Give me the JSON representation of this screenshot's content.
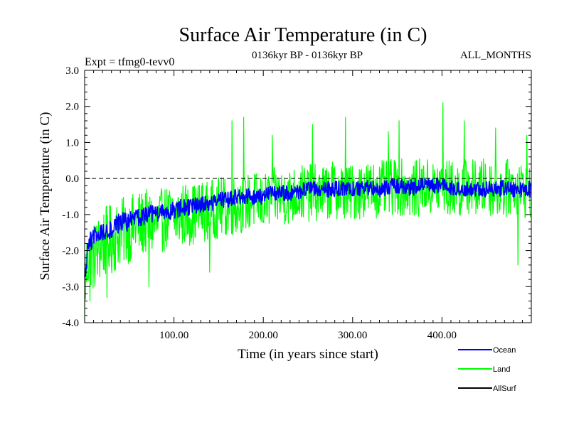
{
  "chart_data": {
    "type": "line",
    "title": "Surface Air Temperature (in C)",
    "header_left": "Expt = tfmg0-tevv0",
    "header_center": "0136kyr BP - 0136kyr BP",
    "header_right": "ALL_MONTHS",
    "xlabel": "Time (in years since start)",
    "ylabel": "Surface Air Temperature (in C)",
    "xlim": [
      0,
      500
    ],
    "ylim": [
      -4.0,
      3.0
    ],
    "xticks": [
      100,
      200,
      300,
      400
    ],
    "xtick_labels": [
      "100.00",
      "200.00",
      "300.00",
      "400.00"
    ],
    "yticks": [
      -4.0,
      -3.0,
      -2.0,
      -1.0,
      0.0,
      1.0,
      2.0,
      3.0
    ],
    "ytick_labels": [
      "-4.0",
      "-3.0",
      "-2.0",
      "-1.0",
      "0.0",
      "1.0",
      "2.0",
      "3.0"
    ],
    "reference_line": {
      "y": 0.0,
      "style": "dashed",
      "color": "#000000"
    },
    "grid": false,
    "legend_position": "bottom-right outside",
    "series": [
      {
        "name": "Land",
        "color": "#00ff00",
        "x": [
          0,
          5,
          10,
          20,
          30,
          40,
          50,
          60,
          70,
          80,
          90,
          100,
          110,
          120,
          130,
          140,
          150,
          160,
          170,
          180,
          190,
          200,
          210,
          220,
          230,
          240,
          250,
          260,
          270,
          280,
          290,
          300,
          310,
          320,
          330,
          340,
          350,
          360,
          370,
          380,
          390,
          400,
          410,
          420,
          430,
          440,
          450,
          460,
          470,
          480,
          490,
          500
        ],
        "values": [
          -2.9,
          -2.0,
          -2.2,
          -1.8,
          -1.7,
          -1.5,
          -1.4,
          -1.3,
          -1.2,
          -1.3,
          -1.1,
          -1.1,
          -1.0,
          -1.0,
          -0.9,
          -0.9,
          -0.8,
          -0.8,
          -0.7,
          -0.7,
          -0.6,
          -0.7,
          -0.5,
          -0.5,
          -0.5,
          -0.4,
          -0.4,
          -0.4,
          -0.4,
          -0.3,
          -0.4,
          -0.4,
          -0.3,
          -0.3,
          -0.3,
          -0.3,
          -0.2,
          -0.3,
          -0.3,
          -0.2,
          -0.3,
          -0.2,
          -0.3,
          -0.3,
          -0.2,
          -0.3,
          -0.2,
          -0.3,
          -0.3,
          -0.2,
          -0.3,
          -0.3
        ],
        "band": [
          1.1,
          1.0,
          1.0,
          1.0,
          1.0,
          0.95,
          0.95,
          0.95,
          0.9,
          0.9,
          0.9,
          0.9,
          0.9,
          0.85,
          0.85,
          0.85,
          0.85,
          0.85,
          0.85,
          0.8,
          0.8,
          0.8,
          0.8,
          0.8,
          0.8,
          0.8,
          0.8,
          0.8,
          0.8,
          0.8,
          0.8,
          0.8,
          0.8,
          0.8,
          0.8,
          0.8,
          0.8,
          0.8,
          0.8,
          0.8,
          0.8,
          0.8,
          0.8,
          0.8,
          0.8,
          0.8,
          0.8,
          0.8,
          0.8,
          0.8,
          0.8,
          0.8
        ],
        "extremes": [
          {
            "x": 0,
            "y": -4.0
          },
          {
            "x": 6,
            "y": -3.4
          },
          {
            "x": 25,
            "y": -3.3
          },
          {
            "x": 72,
            "y": -3.0
          },
          {
            "x": 140,
            "y": -2.6
          },
          {
            "x": 165,
            "y": 1.6
          },
          {
            "x": 178,
            "y": 1.7
          },
          {
            "x": 210,
            "y": 1.2
          },
          {
            "x": 255,
            "y": 1.5
          },
          {
            "x": 292,
            "y": 1.7
          },
          {
            "x": 340,
            "y": 1.3
          },
          {
            "x": 352,
            "y": 1.6
          },
          {
            "x": 401,
            "y": 2.1
          },
          {
            "x": 425,
            "y": 1.6
          },
          {
            "x": 460,
            "y": 1.4
          },
          {
            "x": 485,
            "y": -2.4
          },
          {
            "x": 495,
            "y": 1.2
          }
        ]
      },
      {
        "name": "Ocean",
        "color": "#0000ff",
        "x": [
          0,
          5,
          10,
          20,
          30,
          40,
          50,
          60,
          70,
          80,
          90,
          100,
          110,
          120,
          130,
          140,
          150,
          160,
          170,
          180,
          190,
          200,
          210,
          220,
          230,
          240,
          250,
          260,
          270,
          280,
          290,
          300,
          310,
          320,
          330,
          340,
          350,
          360,
          370,
          380,
          390,
          400,
          410,
          420,
          430,
          440,
          450,
          460,
          470,
          480,
          490,
          500
        ],
        "values": [
          -2.8,
          -1.8,
          -1.6,
          -1.5,
          -1.4,
          -1.2,
          -1.2,
          -1.1,
          -1.0,
          -1.0,
          -0.9,
          -0.9,
          -0.8,
          -0.8,
          -0.7,
          -0.7,
          -0.6,
          -0.6,
          -0.5,
          -0.5,
          -0.5,
          -0.5,
          -0.4,
          -0.4,
          -0.4,
          -0.35,
          -0.3,
          -0.3,
          -0.3,
          -0.3,
          -0.3,
          -0.3,
          -0.3,
          -0.25,
          -0.3,
          -0.25,
          -0.2,
          -0.25,
          -0.25,
          -0.2,
          -0.2,
          -0.2,
          -0.25,
          -0.3,
          -0.25,
          -0.3,
          -0.3,
          -0.3,
          -0.25,
          -0.3,
          -0.3,
          -0.3
        ],
        "band": [
          0.35,
          0.3,
          0.3,
          0.3,
          0.3,
          0.28,
          0.28,
          0.27,
          0.26,
          0.25,
          0.25,
          0.25,
          0.24,
          0.24,
          0.23,
          0.23,
          0.23,
          0.22,
          0.22,
          0.22,
          0.22,
          0.22,
          0.22,
          0.22,
          0.22,
          0.22,
          0.22,
          0.22,
          0.22,
          0.22,
          0.22,
          0.22,
          0.22,
          0.22,
          0.22,
          0.22,
          0.22,
          0.22,
          0.22,
          0.22,
          0.22,
          0.22,
          0.22,
          0.22,
          0.22,
          0.22,
          0.22,
          0.22,
          0.22,
          0.22,
          0.22,
          0.22
        ]
      },
      {
        "name": "AllSurf",
        "color": "#000000",
        "x": [],
        "values": []
      }
    ]
  }
}
